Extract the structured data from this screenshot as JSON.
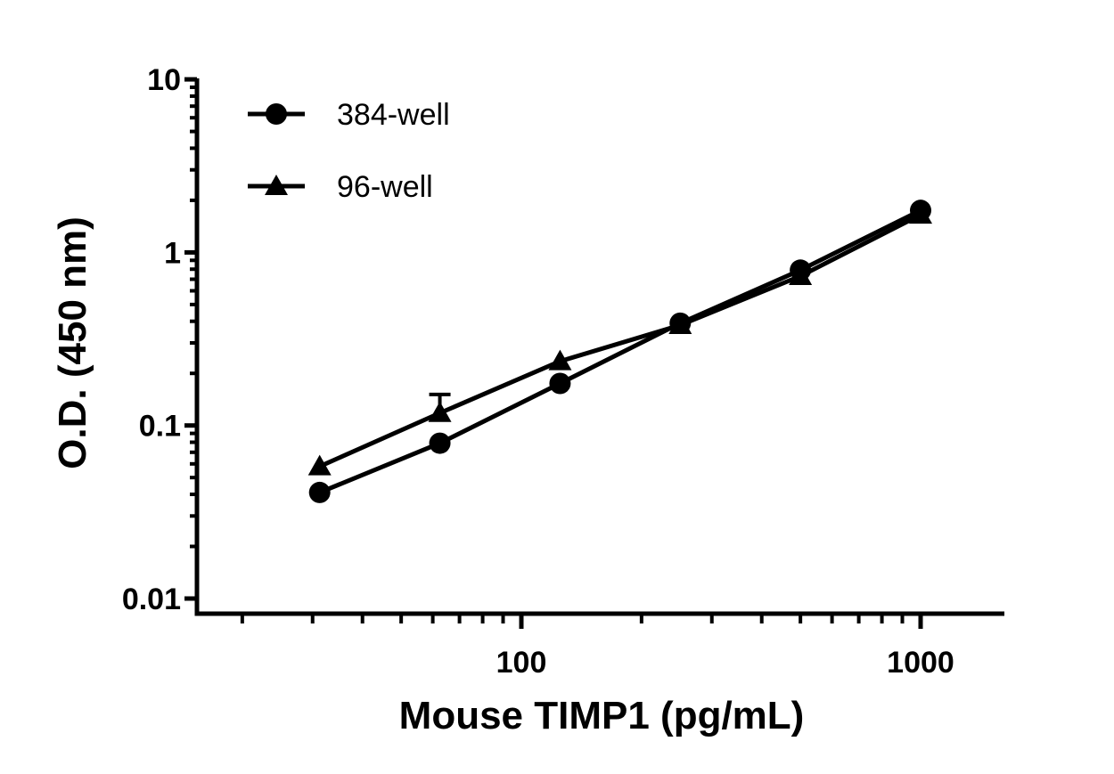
{
  "chart_data": {
    "type": "line",
    "title": "",
    "xlabel": "Mouse TIMP1 (pg/mL)",
    "ylabel": "O.D. (450 nm)",
    "x_scale": "log",
    "y_scale": "log",
    "xlim": [
      15,
      1500
    ],
    "ylim": [
      0.01,
      10
    ],
    "x_ticks": [
      100,
      1000
    ],
    "x_tick_labels": [
      "100",
      "1000"
    ],
    "y_ticks": [
      0.01,
      0.1,
      1,
      10
    ],
    "y_tick_labels": [
      "0.01",
      "0.1",
      "1",
      "10"
    ],
    "grid": false,
    "legend_position": "top-left",
    "series": [
      {
        "name": "384-well",
        "marker": "circle",
        "x": [
          31.25,
          62.5,
          125,
          250,
          500,
          1000
        ],
        "y": [
          0.041,
          0.079,
          0.175,
          0.39,
          0.79,
          1.75
        ]
      },
      {
        "name": "96-well",
        "marker": "triangle",
        "x": [
          31.25,
          62.5,
          125,
          250,
          500,
          1000
        ],
        "y": [
          0.058,
          0.118,
          0.235,
          0.38,
          0.73,
          1.65
        ],
        "error_upper": [
          0,
          0.033,
          0,
          0,
          0,
          0
        ]
      }
    ]
  }
}
